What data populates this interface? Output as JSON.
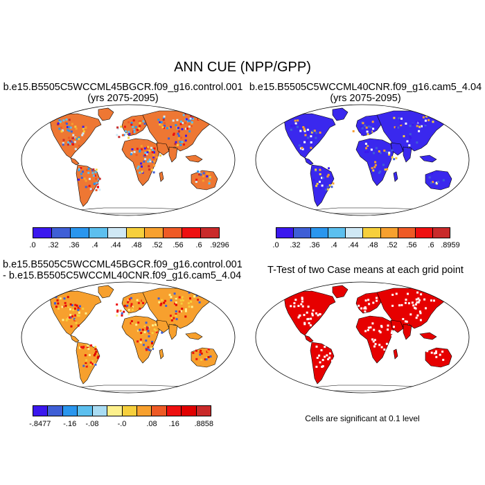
{
  "main_title": "ANN CUE (NPP/GPP)",
  "panels": {
    "top_left": {
      "title_line1": "b.e15.B5505C5WCCML45BGCR.f09_g16.control.001",
      "title_line2": "(yrs 2075-2095)"
    },
    "top_right": {
      "title_line1": "b.e15.B5505C5WCCML40CNR.f09_g16.cam5_4.04",
      "title_line2": "(yrs 2075-2095)"
    },
    "bottom_left": {
      "title_line1": "b.e15.B5505C5WCCML45BGCR.f09_g16.control.001",
      "title_line2": "- b.e15.B5505C5WCCML40CNR.f09_g16.cam5_4.04"
    },
    "bottom_right": {
      "title_line1": "T-Test of two Case means at each grid point",
      "note": "Cells are significant at 0.1 level"
    }
  },
  "colorbars": {
    "top_left": {
      "labels": [
        ".0",
        ".32",
        ".36",
        ".4",
        ".44",
        ".48",
        ".52",
        ".56",
        ".6",
        ".9296"
      ],
      "colors": [
        "#3b18ee",
        "#3f5fd6",
        "#2a96ee",
        "#5cbfee",
        "#cfe8f5",
        "#f6cf3c",
        "#f7a02e",
        "#ee5a25",
        "#ee1010",
        "#c92a2a"
      ]
    },
    "top_right": {
      "labels": [
        ".0",
        ".32",
        ".36",
        ".4",
        ".44",
        ".48",
        ".52",
        ".56",
        ".6",
        ".8959"
      ],
      "colors": [
        "#3b18ee",
        "#3f5fd6",
        "#2a96ee",
        "#5cbfee",
        "#cfe8f5",
        "#f6cf3c",
        "#f7a02e",
        "#ee5a25",
        "#ee1010",
        "#c92a2a"
      ]
    },
    "bottom_left": {
      "labels": [
        "-.8477",
        "-.16",
        "-.08",
        "-.0",
        ".08",
        ".16",
        ".8858"
      ],
      "colors": [
        "#3b18ee",
        "#3f5fd6",
        "#2a96ee",
        "#5cbfee",
        "#a9dcf3",
        "#fdf08c",
        "#f6cf3c",
        "#f7a02e",
        "#ee5a25",
        "#ee1010",
        "#e00000",
        "#c92a2a"
      ]
    }
  },
  "map_colors": {
    "top_left_land": "#ee7733",
    "top_right_land": "#3a28ee",
    "diff_land": "#f7a02e",
    "ttest_land": "#e60000"
  }
}
